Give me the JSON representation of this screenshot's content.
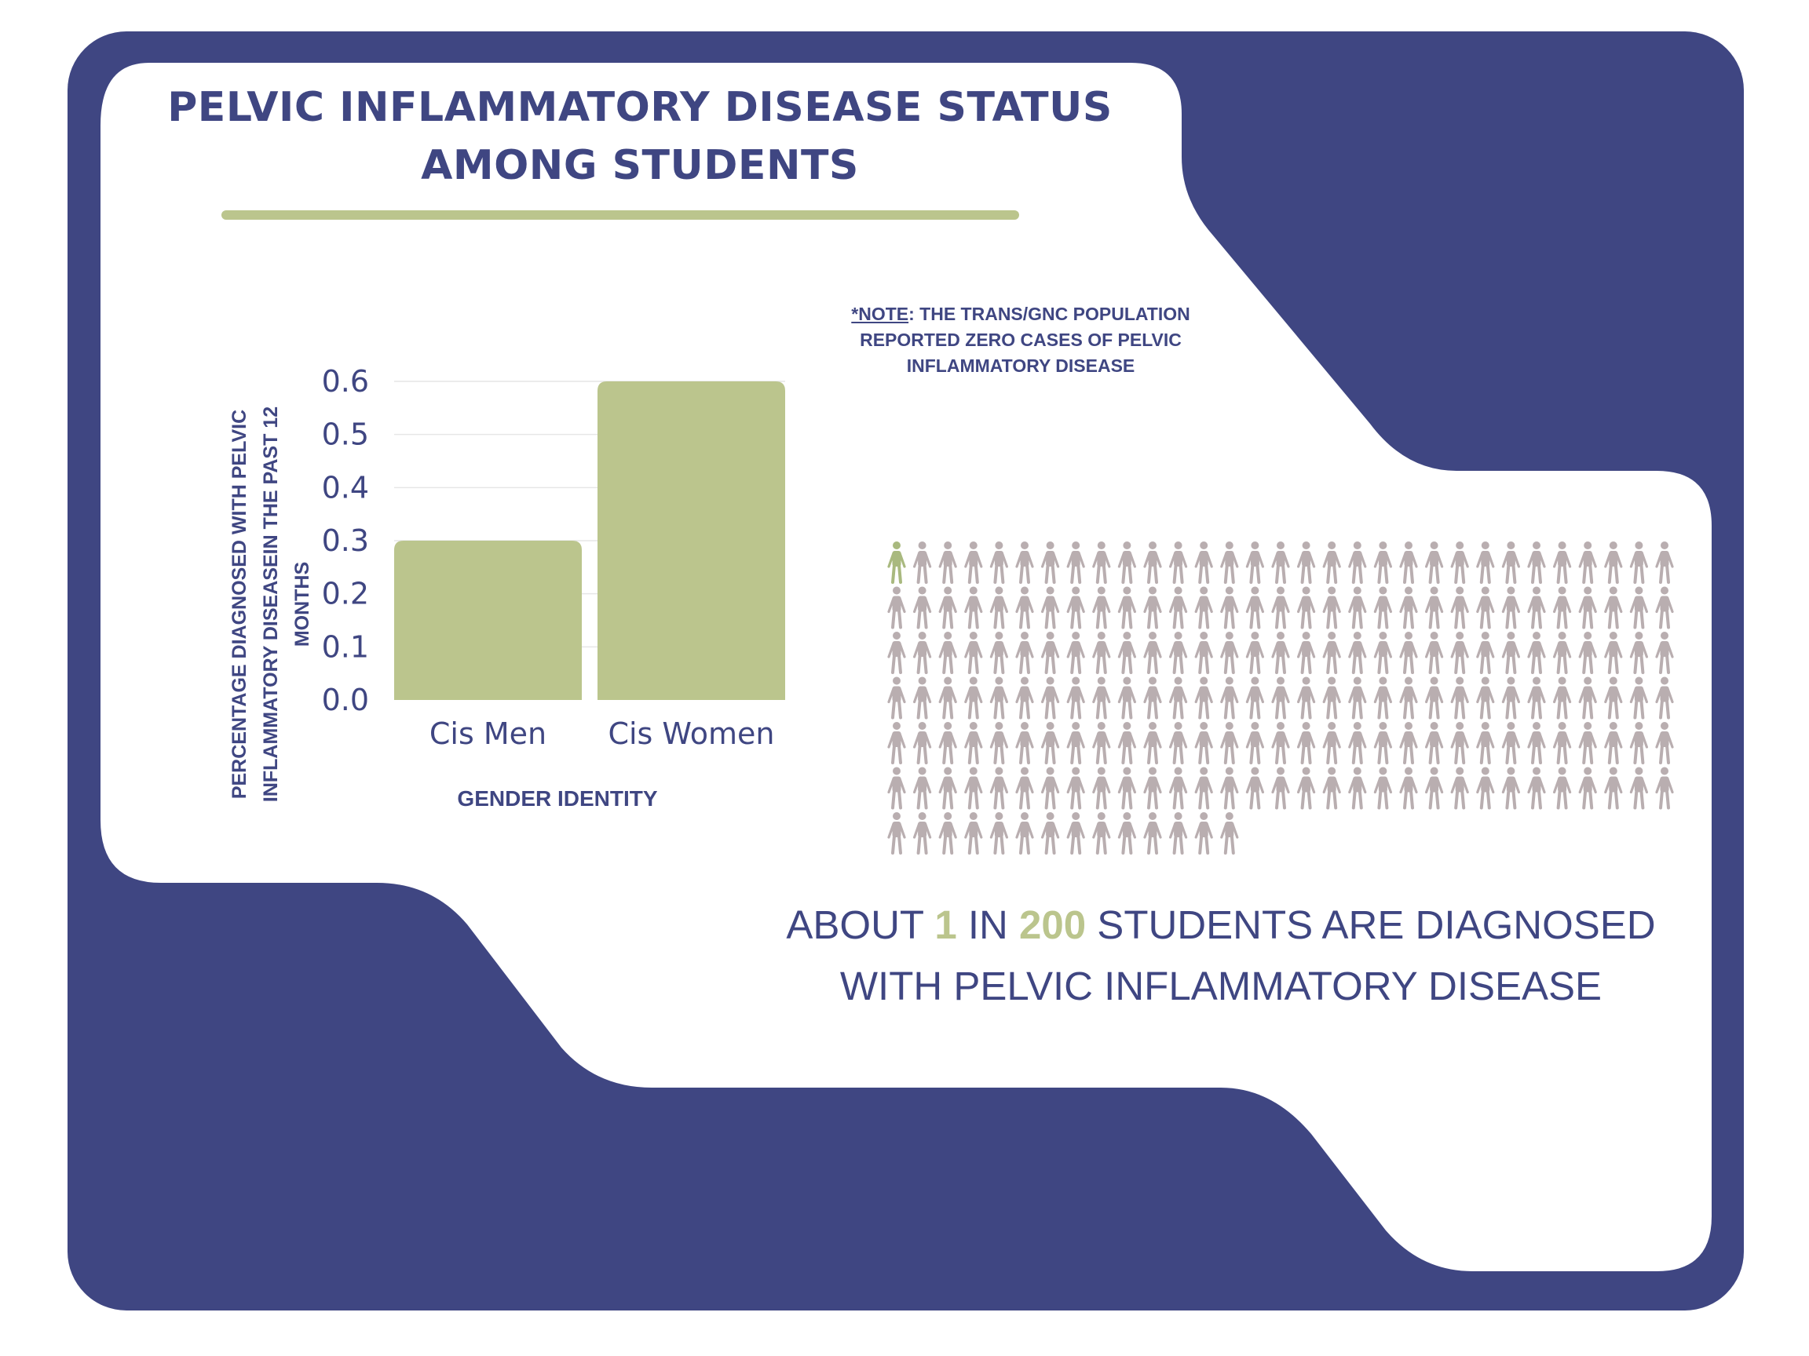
{
  "title": "PELVIC INFLAMMATORY DISEASE STATUS AMONG STUDENTS",
  "note": {
    "label": "*NOTE",
    "text": ": THE TRANS/GNC POPULATION REPORTED ZERO CASES OF PELVIC INFLAMMATORY DISEASE"
  },
  "chart_data": {
    "type": "bar",
    "categories": [
      "Cis Men",
      "Cis Women"
    ],
    "values": [
      0.3,
      0.6
    ],
    "title": "",
    "xlabel": "GENDER IDENTITY",
    "ylabel": "PERCENTAGE DIAGNOSED WITH PELVIC INFLAMMATORY DISEASEIN THE PAST 12 MONTHS",
    "ylim": [
      0,
      0.6
    ],
    "yticks": [
      "0.0",
      "0.1",
      "0.2",
      "0.3",
      "0.4",
      "0.5",
      "0.6"
    ],
    "grid": true,
    "bar_color": "#bbc58d"
  },
  "pictogram": {
    "highlighted": 1,
    "total": 200,
    "highlight_color": "#a9b97f",
    "base_color": "#b9aeb0",
    "icon": "person-icon"
  },
  "stat": {
    "prefix": "ABOUT ",
    "num1": "1",
    "mid": " IN ",
    "num2": "200",
    "suffix": " STUDENTS ARE DIAGNOSED WITH PELVIC INFLAMMATORY DISEASE"
  },
  "colors": {
    "navy": "#3f4682",
    "green": "#bbc58d",
    "gray": "#b9aeb0",
    "white": "#ffffff"
  }
}
